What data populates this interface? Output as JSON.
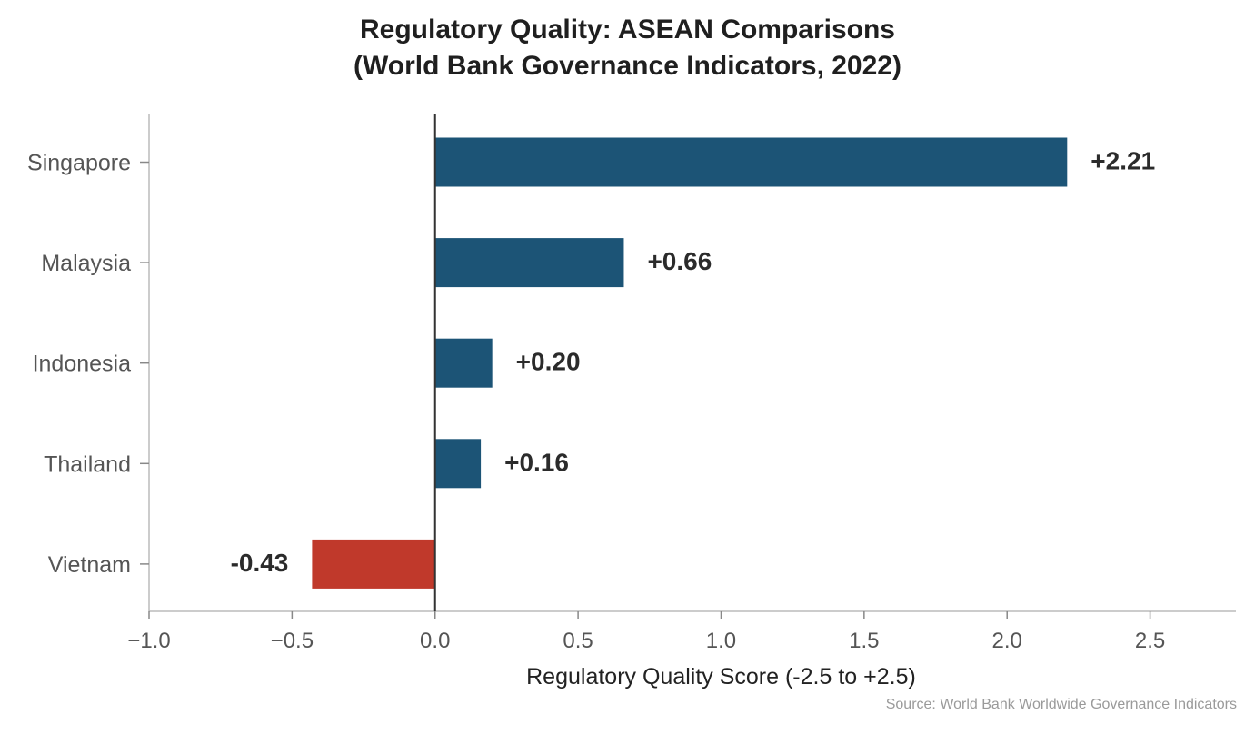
{
  "chart_data": {
    "type": "bar",
    "orientation": "horizontal",
    "title_line1": "Regulatory Quality: ASEAN Comparisons",
    "title_line2": "(World Bank Governance Indicators, 2022)",
    "categories": [
      "Singapore",
      "Malaysia",
      "Indonesia",
      "Thailand",
      "Vietnam"
    ],
    "values": [
      2.21,
      0.66,
      0.2,
      0.16,
      -0.43
    ],
    "value_labels": [
      "+2.21",
      "+0.66",
      "+0.20",
      "+0.16",
      "-0.43"
    ],
    "xlabel": "Regulatory Quality Score (-2.5 to +2.5)",
    "ylabel": "",
    "xlim": [
      -1.0,
      2.8
    ],
    "xticks": [
      -1.0,
      -0.5,
      0.0,
      0.5,
      1.0,
      1.5,
      2.0,
      2.5
    ],
    "xtick_labels": [
      "−1.0",
      "−0.5",
      "0.0",
      "0.5",
      "1.0",
      "1.5",
      "2.0",
      "2.5"
    ],
    "grid": false,
    "colors": {
      "positive": "#1c5476",
      "negative": "#c0392b",
      "zero_line": "#333333",
      "axis": "#bbbbbb"
    },
    "source": "Source: World Bank Worldwide Governance Indicators"
  }
}
